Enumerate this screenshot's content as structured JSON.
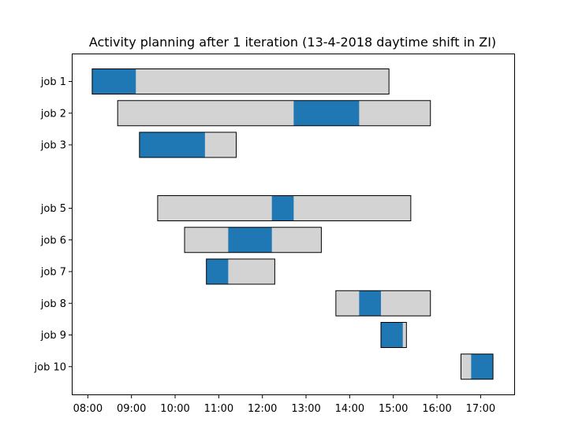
{
  "chart_data": {
    "type": "gantt",
    "title": "Activity planning after 1 iteration (13-4-2018 daytime shift in ZI)",
    "xlabel": "",
    "ylabel": "",
    "xlim_hours": [
      7.65,
      17.77
    ],
    "x_ticks": [
      "08:00",
      "09:00",
      "10:00",
      "11:00",
      "12:00",
      "13:00",
      "14:00",
      "15:00",
      "16:00",
      "17:00"
    ],
    "x_tick_values_hours": [
      8,
      9,
      10,
      11,
      12,
      13,
      14,
      15,
      16,
      17
    ],
    "row_slots": 10,
    "colors": {
      "window": "#d3d3d3",
      "activity": "#1f77b4",
      "edge": "#000000"
    },
    "jobs": [
      {
        "label": "job 1",
        "row": 1,
        "window": [
          "08:06",
          "14:54"
        ],
        "activity": [
          "08:06",
          "09:06"
        ]
      },
      {
        "label": "job 2",
        "row": 2,
        "window": [
          "08:41",
          "15:51"
        ],
        "activity": [
          "12:43",
          "14:13"
        ]
      },
      {
        "label": "job 3",
        "row": 3,
        "window": [
          "09:11",
          "11:24"
        ],
        "activity": [
          "09:11",
          "10:41"
        ]
      },
      {
        "label": "job 5",
        "row": 5,
        "window": [
          "09:36",
          "15:24"
        ],
        "activity": [
          "12:13",
          "12:43"
        ]
      },
      {
        "label": "job 6",
        "row": 6,
        "window": [
          "10:13",
          "13:21"
        ],
        "activity": [
          "11:13",
          "12:13"
        ]
      },
      {
        "label": "job 7",
        "row": 7,
        "window": [
          "10:43",
          "12:17"
        ],
        "activity": [
          "10:43",
          "11:13"
        ]
      },
      {
        "label": "job 8",
        "row": 8,
        "window": [
          "13:41",
          "15:51"
        ],
        "activity": [
          "14:13",
          "14:43"
        ]
      },
      {
        "label": "job 9",
        "row": 9,
        "window": [
          "14:43",
          "15:18"
        ],
        "activity": [
          "14:43",
          "15:13"
        ]
      },
      {
        "label": "job 10",
        "row": 10,
        "window": [
          "16:33",
          "17:17"
        ],
        "activity": [
          "16:47",
          "17:17"
        ]
      }
    ]
  }
}
